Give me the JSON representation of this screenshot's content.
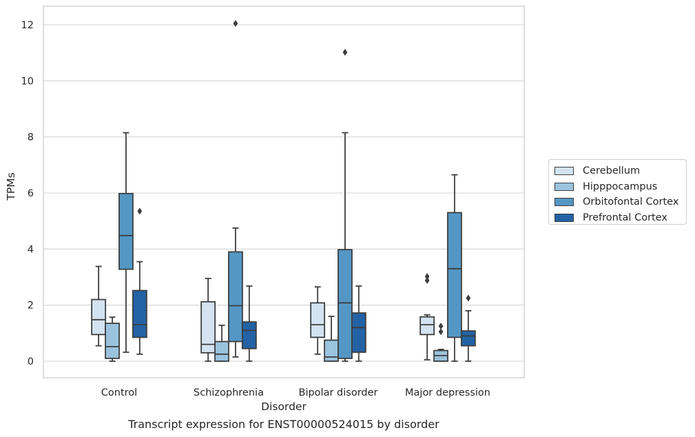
{
  "caption": "Transcript expression for ENST00000524015 by disorder",
  "chart_data": {
    "type": "box",
    "title": "",
    "xlabel": "Disorder",
    "ylabel": "TPMs",
    "ylim": [
      -0.6,
      12.7
    ],
    "yticks": [
      0,
      2,
      4,
      6,
      8,
      10,
      12
    ],
    "grid": "horizontal",
    "legend_position": "right",
    "categories": [
      "Control",
      "Schizophrenia",
      "Bipolar disorder",
      "Major depression"
    ],
    "series": [
      {
        "name": "Cerebellum",
        "color": "#d4e3f1",
        "boxes": [
          {
            "whislo": 0.55,
            "q1": 0.95,
            "med": 1.48,
            "q3": 2.2,
            "whishi": 3.38,
            "fliers": []
          },
          {
            "whislo": 0.0,
            "q1": 0.3,
            "med": 0.6,
            "q3": 2.12,
            "whishi": 2.95,
            "fliers": []
          },
          {
            "whislo": 0.25,
            "q1": 0.85,
            "med": 1.3,
            "q3": 2.08,
            "whishi": 2.65,
            "fliers": []
          },
          {
            "whislo": 0.05,
            "q1": 0.95,
            "med": 1.3,
            "q3": 1.58,
            "whishi": 1.65,
            "fliers": [
              2.88,
              3.02
            ]
          }
        ]
      },
      {
        "name": "Hipppocampus",
        "color": "#9ac3dd",
        "boxes": [
          {
            "whislo": 0.0,
            "q1": 0.1,
            "med": 0.52,
            "q3": 1.35,
            "whishi": 1.57,
            "fliers": []
          },
          {
            "whislo": 0.0,
            "q1": 0.0,
            "med": 0.25,
            "q3": 0.7,
            "whishi": 1.28,
            "fliers": []
          },
          {
            "whislo": 0.0,
            "q1": 0.0,
            "med": 0.15,
            "q3": 0.75,
            "whishi": 1.6,
            "fliers": []
          },
          {
            "whislo": 0.0,
            "q1": 0.0,
            "med": 0.2,
            "q3": 0.38,
            "whishi": 0.42,
            "fliers": [
              1.05,
              1.25
            ]
          }
        ]
      },
      {
        "name": "Orbitofontal Cortex",
        "color": "#5497c5",
        "boxes": [
          {
            "whislo": 0.32,
            "q1": 3.28,
            "med": 4.48,
            "q3": 5.98,
            "whishi": 8.15,
            "fliers": []
          },
          {
            "whislo": 0.15,
            "q1": 0.7,
            "med": 1.98,
            "q3": 3.9,
            "whishi": 4.75,
            "fliers": [
              12.05
            ]
          },
          {
            "whislo": 0.0,
            "q1": 0.1,
            "med": 2.08,
            "q3": 3.98,
            "whishi": 8.15,
            "fliers": [
              11.02
            ]
          },
          {
            "whislo": 0.0,
            "q1": 0.85,
            "med": 3.3,
            "q3": 5.3,
            "whishi": 6.65,
            "fliers": []
          }
        ]
      },
      {
        "name": "Prefrontal Cortex",
        "color": "#2362a4",
        "boxes": [
          {
            "whislo": 0.25,
            "q1": 0.85,
            "med": 1.3,
            "q3": 2.52,
            "whishi": 3.55,
            "fliers": [
              5.35
            ]
          },
          {
            "whislo": 0.0,
            "q1": 0.45,
            "med": 1.1,
            "q3": 1.4,
            "whishi": 2.68,
            "fliers": []
          },
          {
            "whislo": 0.0,
            "q1": 0.32,
            "med": 1.2,
            "q3": 1.72,
            "whishi": 2.68,
            "fliers": []
          },
          {
            "whislo": 0.0,
            "q1": 0.55,
            "med": 0.9,
            "q3": 1.08,
            "whishi": 1.8,
            "fliers": [
              2.25
            ]
          }
        ]
      }
    ]
  }
}
